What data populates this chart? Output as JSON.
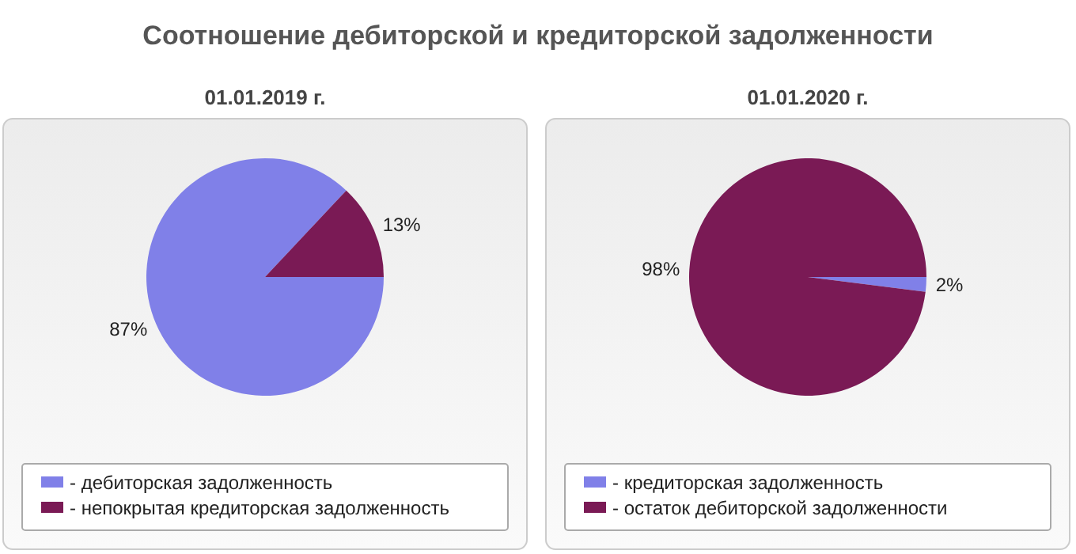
{
  "chart_data": [
    {
      "type": "pie",
      "title": "Соотношение дебиторской и кредиторской задолженности",
      "subtitle": "01.01.2019 г.",
      "categories": [
        "- дебиторская задолженность",
        "- непокрытая кредиторская задолженность"
      ],
      "values": [
        87,
        13
      ],
      "colors": [
        "#8080e8",
        "#7a1a55"
      ],
      "value_labels": [
        "87%",
        "13%"
      ],
      "legend": "bottom"
    },
    {
      "type": "pie",
      "subtitle": "01.01.2020 г.",
      "categories": [
        "- кредиторская задолженность",
        "- остаток дебиторской задолженности"
      ],
      "values": [
        2,
        98
      ],
      "colors": [
        "#8080e8",
        "#7a1a55"
      ],
      "value_labels": [
        "2%",
        "98%"
      ],
      "legend": "bottom"
    }
  ]
}
